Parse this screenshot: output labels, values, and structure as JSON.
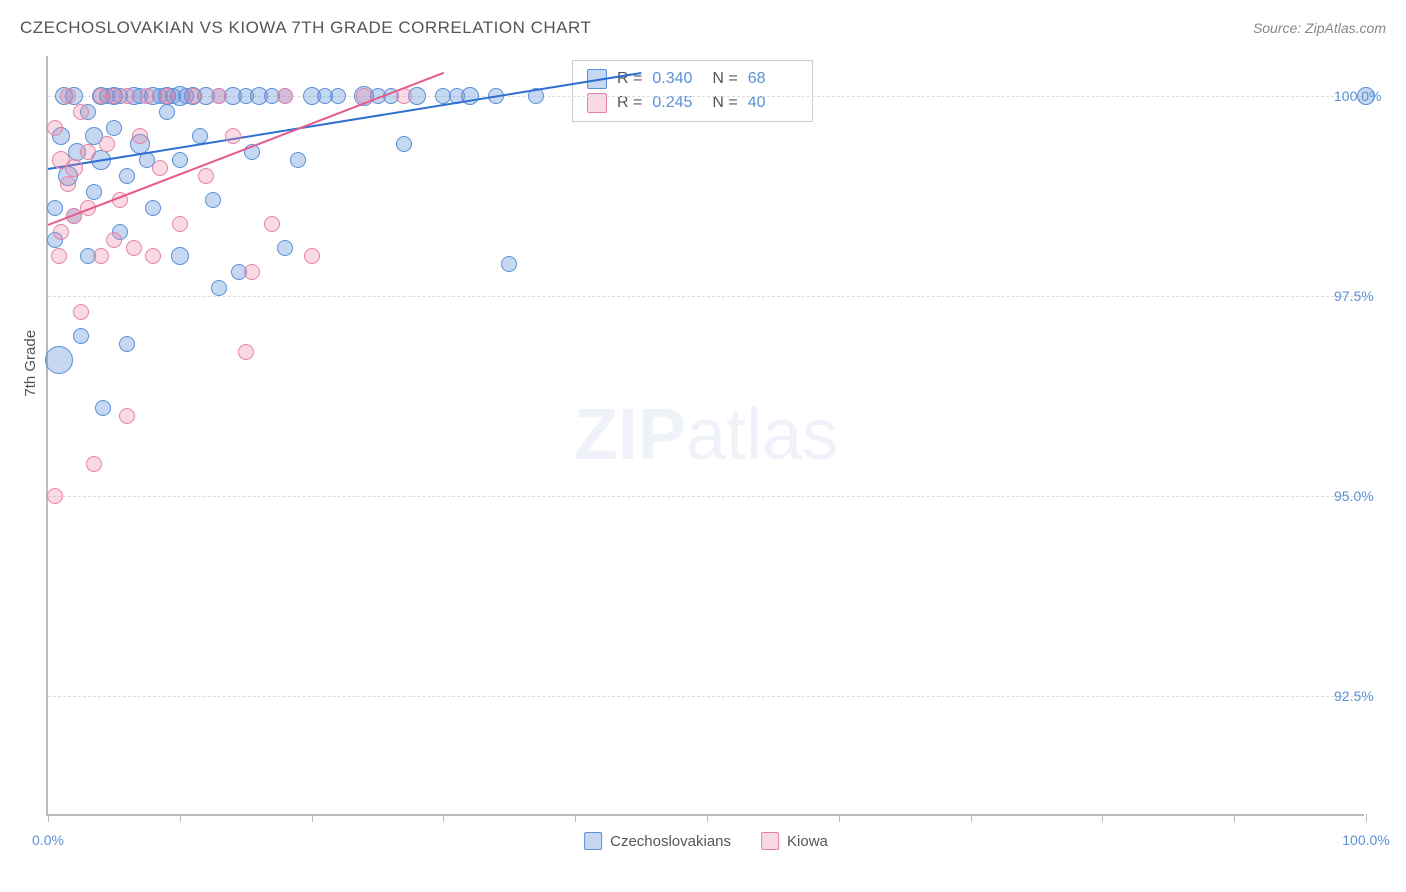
{
  "title": "CZECHOSLOVAKIAN VS KIOWA 7TH GRADE CORRELATION CHART",
  "source_label": "Source: ZipAtlas.com",
  "ylabel": "7th Grade",
  "watermark": {
    "bold": "ZIP",
    "light": "atlas"
  },
  "xlim": [
    0,
    100
  ],
  "ylim": [
    91,
    100.5
  ],
  "x_ticks": [
    0,
    10,
    20,
    30,
    40,
    50,
    60,
    70,
    80,
    90,
    100
  ],
  "x_tick_labels": {
    "0": "0.0%",
    "100": "100.0%"
  },
  "y_gridlines": [
    92.5,
    95.0,
    97.5,
    100.0
  ],
  "y_tick_labels": {
    "92.5": "92.5%",
    "95.0": "95.0%",
    "97.5": "97.5%",
    "100.0": "100.0%"
  },
  "series": [
    {
      "name": "Czechoslovakians",
      "fill": "rgba(91,143,214,0.35)",
      "stroke": "#5b8fd6",
      "line_color": "#2e6fd1",
      "R": "0.340",
      "N": "68",
      "trend": {
        "x1": 0,
        "y1": 99.1,
        "x2": 45,
        "y2": 100.3
      },
      "points": [
        {
          "x": 0.5,
          "y": 98.2,
          "r": 8
        },
        {
          "x": 0.5,
          "y": 98.6,
          "r": 8
        },
        {
          "x": 0.8,
          "y": 96.7,
          "r": 14
        },
        {
          "x": 1.0,
          "y": 99.5,
          "r": 9
        },
        {
          "x": 1.2,
          "y": 100.0,
          "r": 9
        },
        {
          "x": 1.5,
          "y": 99.0,
          "r": 10
        },
        {
          "x": 2.0,
          "y": 98.5,
          "r": 8
        },
        {
          "x": 2.0,
          "y": 100.0,
          "r": 9
        },
        {
          "x": 2.2,
          "y": 99.3,
          "r": 9
        },
        {
          "x": 2.5,
          "y": 97.0,
          "r": 8
        },
        {
          "x": 3.0,
          "y": 99.8,
          "r": 8
        },
        {
          "x": 3.0,
          "y": 98.0,
          "r": 8
        },
        {
          "x": 3.5,
          "y": 99.5,
          "r": 9
        },
        {
          "x": 3.5,
          "y": 98.8,
          "r": 8
        },
        {
          "x": 4.0,
          "y": 100.0,
          "r": 9
        },
        {
          "x": 4.0,
          "y": 99.2,
          "r": 10
        },
        {
          "x": 4.2,
          "y": 96.1,
          "r": 8
        },
        {
          "x": 4.5,
          "y": 100.0,
          "r": 8
        },
        {
          "x": 5.0,
          "y": 100.0,
          "r": 9
        },
        {
          "x": 5.0,
          "y": 99.6,
          "r": 8
        },
        {
          "x": 5.5,
          "y": 98.3,
          "r": 8
        },
        {
          "x": 5.5,
          "y": 100.0,
          "r": 8
        },
        {
          "x": 6.0,
          "y": 99.0,
          "r": 8
        },
        {
          "x": 6.0,
          "y": 96.9,
          "r": 8
        },
        {
          "x": 6.5,
          "y": 100.0,
          "r": 9
        },
        {
          "x": 7.0,
          "y": 100.0,
          "r": 8
        },
        {
          "x": 7.0,
          "y": 99.4,
          "r": 10
        },
        {
          "x": 7.5,
          "y": 99.2,
          "r": 8
        },
        {
          "x": 8.0,
          "y": 100.0,
          "r": 9
        },
        {
          "x": 8.0,
          "y": 98.6,
          "r": 8
        },
        {
          "x": 8.5,
          "y": 100.0,
          "r": 8
        },
        {
          "x": 9.0,
          "y": 100.0,
          "r": 9
        },
        {
          "x": 9.0,
          "y": 99.8,
          "r": 8
        },
        {
          "x": 9.5,
          "y": 100.0,
          "r": 8
        },
        {
          "x": 10.0,
          "y": 100.0,
          "r": 10
        },
        {
          "x": 10.0,
          "y": 99.2,
          "r": 8
        },
        {
          "x": 10.0,
          "y": 98.0,
          "r": 9
        },
        {
          "x": 10.5,
          "y": 100.0,
          "r": 8
        },
        {
          "x": 11.0,
          "y": 100.0,
          "r": 9
        },
        {
          "x": 11.5,
          "y": 99.5,
          "r": 8
        },
        {
          "x": 12.0,
          "y": 100.0,
          "r": 9
        },
        {
          "x": 12.5,
          "y": 98.7,
          "r": 8
        },
        {
          "x": 13.0,
          "y": 100.0,
          "r": 8
        },
        {
          "x": 13.0,
          "y": 97.6,
          "r": 8
        },
        {
          "x": 14.0,
          "y": 100.0,
          "r": 9
        },
        {
          "x": 14.5,
          "y": 97.8,
          "r": 8
        },
        {
          "x": 15.0,
          "y": 100.0,
          "r": 8
        },
        {
          "x": 15.5,
          "y": 99.3,
          "r": 8
        },
        {
          "x": 16.0,
          "y": 100.0,
          "r": 9
        },
        {
          "x": 17.0,
          "y": 100.0,
          "r": 8
        },
        {
          "x": 18.0,
          "y": 100.0,
          "r": 8
        },
        {
          "x": 18.0,
          "y": 98.1,
          "r": 8
        },
        {
          "x": 19.0,
          "y": 99.2,
          "r": 8
        },
        {
          "x": 20.0,
          "y": 100.0,
          "r": 9
        },
        {
          "x": 21.0,
          "y": 100.0,
          "r": 8
        },
        {
          "x": 22.0,
          "y": 100.0,
          "r": 8
        },
        {
          "x": 24.0,
          "y": 100.0,
          "r": 10
        },
        {
          "x": 25.0,
          "y": 100.0,
          "r": 8
        },
        {
          "x": 26.0,
          "y": 100.0,
          "r": 8
        },
        {
          "x": 27.0,
          "y": 99.4,
          "r": 8
        },
        {
          "x": 28.0,
          "y": 100.0,
          "r": 9
        },
        {
          "x": 30.0,
          "y": 100.0,
          "r": 8
        },
        {
          "x": 31.0,
          "y": 100.0,
          "r": 8
        },
        {
          "x": 32.0,
          "y": 100.0,
          "r": 9
        },
        {
          "x": 34.0,
          "y": 100.0,
          "r": 8
        },
        {
          "x": 35.0,
          "y": 97.9,
          "r": 8
        },
        {
          "x": 37.0,
          "y": 100.0,
          "r": 8
        },
        {
          "x": 100.0,
          "y": 100.0,
          "r": 9
        }
      ]
    },
    {
      "name": "Kiowa",
      "fill": "rgba(235,130,165,0.30)",
      "stroke": "#e583a5",
      "line_color": "#e55a8f",
      "R": "0.245",
      "N": "40",
      "trend": {
        "x1": 0,
        "y1": 98.4,
        "x2": 30,
        "y2": 100.3
      },
      "points": [
        {
          "x": 0.5,
          "y": 99.6,
          "r": 8
        },
        {
          "x": 0.5,
          "y": 95.0,
          "r": 8
        },
        {
          "x": 0.8,
          "y": 98.0,
          "r": 8
        },
        {
          "x": 1.0,
          "y": 99.2,
          "r": 9
        },
        {
          "x": 1.0,
          "y": 98.3,
          "r": 8
        },
        {
          "x": 1.5,
          "y": 100.0,
          "r": 8
        },
        {
          "x": 1.5,
          "y": 98.9,
          "r": 8
        },
        {
          "x": 2.0,
          "y": 99.1,
          "r": 9
        },
        {
          "x": 2.0,
          "y": 98.5,
          "r": 8
        },
        {
          "x": 2.5,
          "y": 99.8,
          "r": 8
        },
        {
          "x": 2.5,
          "y": 97.3,
          "r": 8
        },
        {
          "x": 3.0,
          "y": 98.6,
          "r": 8
        },
        {
          "x": 3.0,
          "y": 99.3,
          "r": 8
        },
        {
          "x": 3.5,
          "y": 95.4,
          "r": 8
        },
        {
          "x": 4.0,
          "y": 100.0,
          "r": 8
        },
        {
          "x": 4.0,
          "y": 98.0,
          "r": 8
        },
        {
          "x": 4.5,
          "y": 99.4,
          "r": 8
        },
        {
          "x": 5.0,
          "y": 100.0,
          "r": 8
        },
        {
          "x": 5.0,
          "y": 98.2,
          "r": 8
        },
        {
          "x": 5.5,
          "y": 98.7,
          "r": 8
        },
        {
          "x": 6.0,
          "y": 100.0,
          "r": 8
        },
        {
          "x": 6.0,
          "y": 96.0,
          "r": 8
        },
        {
          "x": 6.5,
          "y": 98.1,
          "r": 8
        },
        {
          "x": 7.0,
          "y": 99.5,
          "r": 8
        },
        {
          "x": 7.5,
          "y": 100.0,
          "r": 8
        },
        {
          "x": 8.0,
          "y": 98.0,
          "r": 8
        },
        {
          "x": 8.5,
          "y": 99.1,
          "r": 8
        },
        {
          "x": 9.0,
          "y": 100.0,
          "r": 8
        },
        {
          "x": 10.0,
          "y": 98.4,
          "r": 8
        },
        {
          "x": 11.0,
          "y": 100.0,
          "r": 8
        },
        {
          "x": 12.0,
          "y": 99.0,
          "r": 8
        },
        {
          "x": 13.0,
          "y": 100.0,
          "r": 8
        },
        {
          "x": 14.0,
          "y": 99.5,
          "r": 8
        },
        {
          "x": 15.0,
          "y": 96.8,
          "r": 8
        },
        {
          "x": 15.5,
          "y": 97.8,
          "r": 8
        },
        {
          "x": 17.0,
          "y": 98.4,
          "r": 8
        },
        {
          "x": 18.0,
          "y": 100.0,
          "r": 8
        },
        {
          "x": 20.0,
          "y": 98.0,
          "r": 8
        },
        {
          "x": 24.0,
          "y": 100.0,
          "r": 8
        },
        {
          "x": 27.0,
          "y": 100.0,
          "r": 8
        }
      ]
    }
  ]
}
